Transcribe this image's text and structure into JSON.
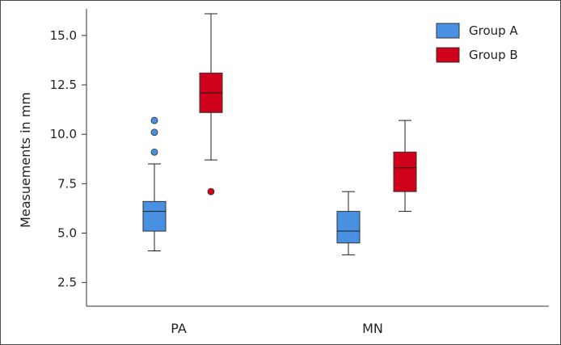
{
  "chart_data": {
    "type": "box",
    "categories": [
      "PA",
      "MN"
    ],
    "ylabel": "Measuements in mm",
    "xlabel": "",
    "ylim": [
      1.3,
      16.1
    ],
    "yticks": [
      2.5,
      5.0,
      7.5,
      10.0,
      12.5,
      15.0
    ],
    "ytick_labels": [
      "2.5",
      "5.0",
      "7.5",
      "10.0",
      "12.5",
      "15.0"
    ],
    "grid": false,
    "legend_position": "top-right",
    "series": [
      {
        "name": "Group A",
        "color": "#4a90e2",
        "boxes": [
          {
            "category": "PA",
            "min": 4.1,
            "q1": 5.1,
            "median": 6.1,
            "q3": 6.6,
            "max": 8.5,
            "outliers": [
              9.1,
              10.1,
              10.7
            ]
          },
          {
            "category": "MN",
            "min": 3.9,
            "q1": 4.5,
            "median": 5.1,
            "q3": 6.1,
            "max": 7.1,
            "outliers": []
          }
        ]
      },
      {
        "name": "Group B",
        "color": "#d0021b",
        "boxes": [
          {
            "category": "PA",
            "min": 8.7,
            "q1": 11.1,
            "median": 12.1,
            "q3": 13.1,
            "max": 16.1,
            "outliers": [
              7.1
            ]
          },
          {
            "category": "MN",
            "min": 6.1,
            "q1": 7.1,
            "median": 8.3,
            "q3": 9.1,
            "max": 10.7,
            "outliers": []
          }
        ]
      }
    ]
  }
}
